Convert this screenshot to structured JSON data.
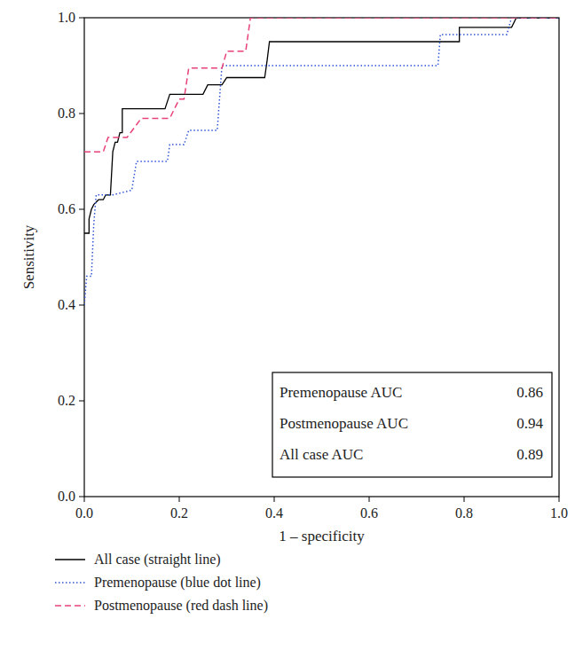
{
  "chart_data": {
    "type": "line",
    "xlabel": "1 – specificity",
    "ylabel": "Sensitivity",
    "xlim": [
      0,
      1
    ],
    "ylim": [
      0,
      1
    ],
    "xticks": [
      {
        "value": 0,
        "label": "0.0"
      },
      0.2,
      0.4,
      0.6,
      0.8,
      {
        "value": 1,
        "label": "1.0"
      }
    ],
    "yticks": [
      {
        "value": 0,
        "label": "0.0"
      },
      0.2,
      0.4,
      0.6,
      0.8,
      {
        "value": 1,
        "label": "1.0"
      }
    ],
    "grid": false,
    "legend": "bottom",
    "series": [
      {
        "name": "All case (straight line)",
        "color": "#000000",
        "line_style": "solid",
        "x": [
          0,
          0.01,
          0.01,
          0.015,
          0.02,
          0.03,
          0.04,
          0.045,
          0.055,
          0.06,
          0.065,
          0.07,
          0.075,
          0.08,
          0.08,
          0.17,
          0.18,
          0.25,
          0.26,
          0.29,
          0.3,
          0.38,
          0.385,
          0.39,
          0.79,
          0.79,
          0.9,
          0.91,
          1
        ],
        "values": [
          0.55,
          0.55,
          0.58,
          0.6,
          0.61,
          0.62,
          0.62,
          0.63,
          0.63,
          0.72,
          0.74,
          0.74,
          0.76,
          0.76,
          0.81,
          0.81,
          0.84,
          0.84,
          0.86,
          0.86,
          0.875,
          0.875,
          0.91,
          0.95,
          0.95,
          0.98,
          0.98,
          1,
          1
        ]
      },
      {
        "name": "Premenopause (blue dot line)",
        "color": "#2f55d4",
        "line_style": "dotted",
        "x": [
          0,
          0.005,
          0.015,
          0.02,
          0.025,
          0.06,
          0.1,
          0.11,
          0.175,
          0.18,
          0.21,
          0.22,
          0.28,
          0.29,
          0.745,
          0.75,
          0.89,
          0.9,
          1
        ],
        "values": [
          0.4,
          0.46,
          0.46,
          0.57,
          0.63,
          0.63,
          0.64,
          0.7,
          0.7,
          0.735,
          0.735,
          0.765,
          0.765,
          0.9,
          0.9,
          0.965,
          0.965,
          1,
          1
        ]
      },
      {
        "name": "Postmenopause (red dash line)",
        "color": "#e8417a",
        "line_style": "dashed",
        "x": [
          0,
          0.04,
          0.05,
          0.09,
          0.12,
          0.18,
          0.2,
          0.21,
          0.22,
          0.29,
          0.3,
          0.34,
          0.35,
          1
        ],
        "values": [
          0.72,
          0.72,
          0.75,
          0.75,
          0.79,
          0.79,
          0.83,
          0.83,
          0.895,
          0.895,
          0.93,
          0.93,
          1,
          1
        ]
      }
    ],
    "annotations": [
      {
        "text": "Premenopause AUC",
        "value": 0.86
      },
      {
        "text": "Postmenopause AUC",
        "value": 0.94
      },
      {
        "text": "All case AUC",
        "value": 0.89
      }
    ]
  }
}
